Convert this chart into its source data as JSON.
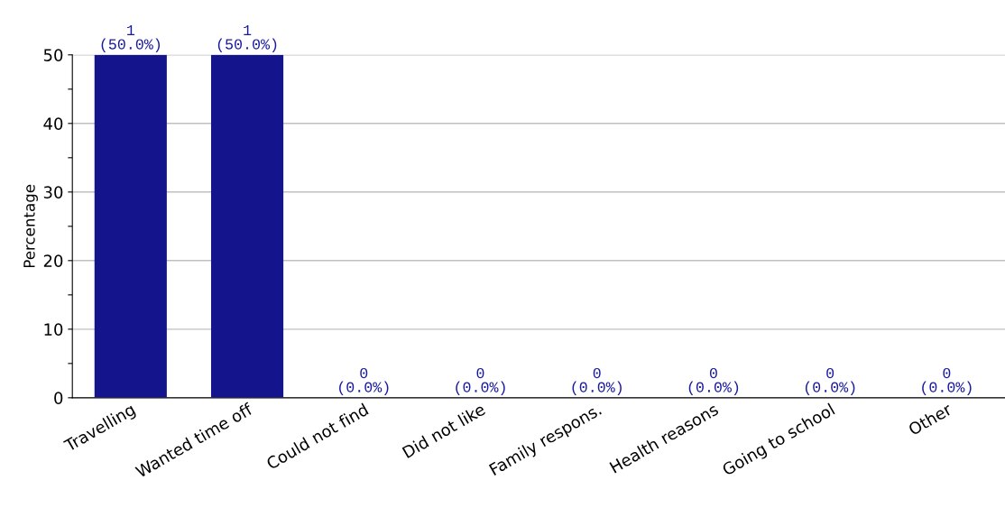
{
  "chart_data": {
    "type": "bar",
    "ylabel": "Percentage",
    "categories": [
      "Travelling",
      "Wanted time off",
      "Could not find",
      "Did not like",
      "Family respons.",
      "Health reasons",
      "Going to school",
      "Other"
    ],
    "values": [
      50,
      50,
      0,
      0,
      0,
      0,
      0,
      0
    ],
    "value_labels": [
      "1\n(50.0%)",
      "1\n(50.0%)",
      "0\n(0.0%)",
      "0\n(0.0%)",
      "0\n(0.0%)",
      "0\n(0.0%)",
      "0\n(0.0%)",
      "0\n(0.0%)"
    ],
    "color": "#14148c",
    "ylim": [
      0,
      50
    ],
    "yticks": [
      0,
      {
        "value": 5,
        "label": null
      },
      10,
      {
        "value": 15,
        "label": null
      },
      20,
      {
        "value": 25,
        "label": null
      },
      30,
      {
        "value": 35,
        "label": null
      },
      40,
      {
        "value": 45,
        "label": null
      },
      50
    ],
    "grid": "y",
    "legend": false
  }
}
